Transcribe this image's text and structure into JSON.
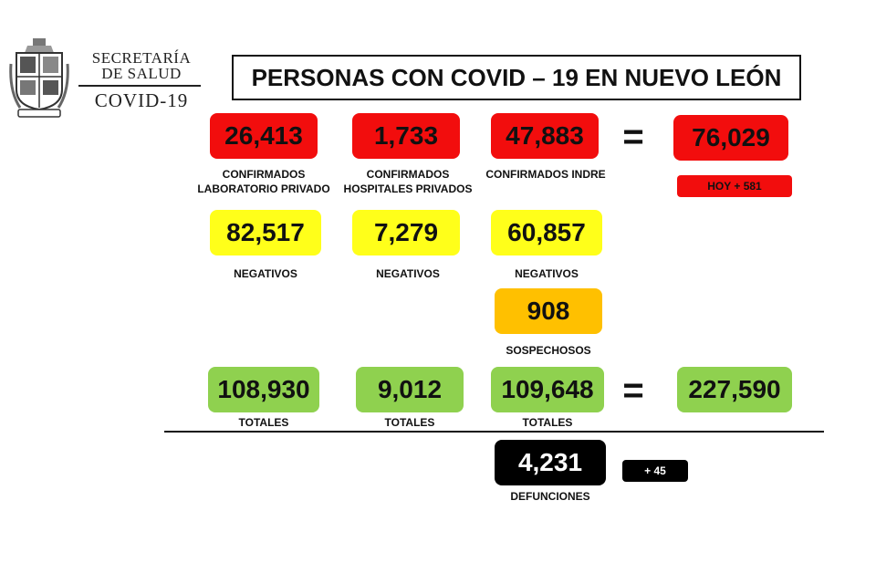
{
  "header": {
    "brand_line1": "SECRETARÍA",
    "brand_line2": "DE SALUD",
    "brand_line3": "COVID-19",
    "title": "PERSONAS CON COVID – 19 EN NUEVO LEÓN"
  },
  "confirmados": {
    "lab_privado": {
      "value": "26,413",
      "label_line1": "CONFIRMADOS",
      "label_line2": "LABORATORIO PRIVADO"
    },
    "hosp_privados": {
      "value": "1,733",
      "label_line1": "CONFIRMADOS",
      "label_line2": "HOSPITALES PRIVADOS"
    },
    "indre": {
      "value": "47,883",
      "label": "CONFIRMADOS INDRE"
    },
    "equals": "=",
    "total": "76,029",
    "hoy": "HOY + 581"
  },
  "negativos": {
    "lab_privado": {
      "value": "82,517",
      "label": "NEGATIVOS"
    },
    "hosp_privados": {
      "value": "7,279",
      "label": "NEGATIVOS"
    },
    "indre": {
      "value": "60,857",
      "label": "NEGATIVOS"
    }
  },
  "sospechosos": {
    "value": "908",
    "label": "SOSPECHOSOS"
  },
  "totales": {
    "lab_privado": {
      "value": "108,930",
      "label": "TOTALES"
    },
    "hosp_privados": {
      "value": "9,012",
      "label": "TOTALES"
    },
    "indre": {
      "value": "109,648",
      "label": "TOTALES"
    },
    "equals": "=",
    "grand_total": "227,590"
  },
  "defunciones": {
    "value": "4,231",
    "label": "DEFUNCIONES",
    "delta": "+ 45"
  },
  "colors": {
    "red": "#f20d0d",
    "yellow": "#ffff1a",
    "orange": "#ffc000",
    "green": "#8fd14f",
    "black": "#000000"
  }
}
